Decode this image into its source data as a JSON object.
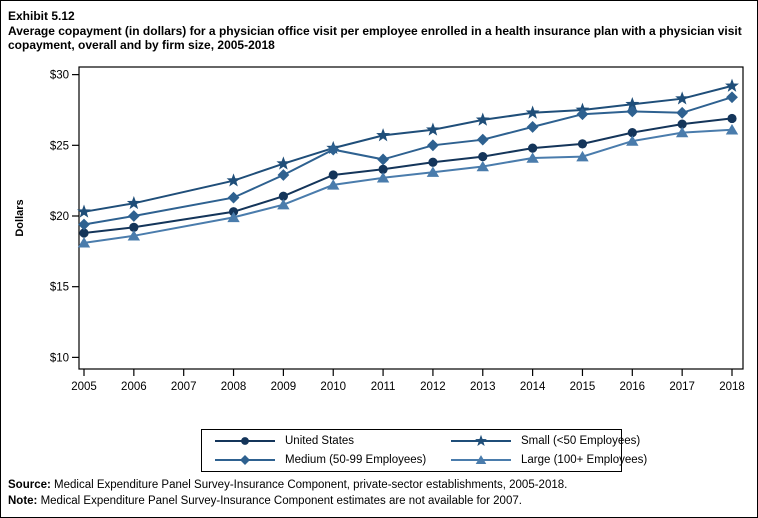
{
  "header": {
    "exhibit_label": "Exhibit 5.12",
    "title": "Average copayment (in dollars) for a physician office visit per employee enrolled in a health insurance plan with a physician visit copayment, overall and by firm size, 2005-2018"
  },
  "footer": {
    "source_label": "Source:",
    "source_text": " Medical Expenditure Panel Survey-Insurance Component, private-sector establishments, 2005-2018.",
    "note_label": "Note:",
    "note_text": " Medical Expenditure Panel Survey-Insurance Component estimates are not available for 2007."
  },
  "chart_data": {
    "type": "line",
    "title": "Average copayment (in dollars) for a physician office visit per employee enrolled in a health insurance plan with a physician visit copayment, overall and by firm size, 2005-2018",
    "xlabel": "",
    "ylabel": "Dollars",
    "ylim": [
      10,
      30
    ],
    "y_tick_values": [
      10,
      15,
      20,
      25,
      30
    ],
    "y_tick_labels": [
      "$10",
      "$15",
      "$20",
      "$25",
      "$30"
    ],
    "x": [
      2005,
      2006,
      2007,
      2008,
      2009,
      2010,
      2011,
      2012,
      2013,
      2014,
      2015,
      2016,
      2017,
      2018
    ],
    "x_tick_labels": [
      "2005",
      "2006",
      "2007",
      "2008",
      "2009",
      "2010",
      "2011",
      "2012",
      "2013",
      "2014",
      "2015",
      "2016",
      "2017",
      "2018"
    ],
    "grid": false,
    "legend_position": "bottom-box",
    "missing_data_note": "No estimates for 2007",
    "series": [
      {
        "name": "United States",
        "marker": "circle",
        "color": "#14355A",
        "values": [
          18.8,
          19.2,
          null,
          20.3,
          21.4,
          22.9,
          23.3,
          23.8,
          24.2,
          24.8,
          25.1,
          25.9,
          26.5,
          26.9
        ]
      },
      {
        "name": "Small (<50 Employees)",
        "marker": "star",
        "color": "#1F4E79",
        "values": [
          20.3,
          20.9,
          null,
          22.5,
          23.7,
          24.8,
          25.7,
          26.1,
          26.8,
          27.3,
          27.5,
          27.9,
          28.3,
          29.2
        ]
      },
      {
        "name": "Medium (50-99 Employees)",
        "marker": "diamond",
        "color": "#2E6190",
        "values": [
          19.4,
          20.0,
          null,
          21.3,
          22.9,
          24.7,
          24.0,
          25.0,
          25.4,
          26.3,
          27.2,
          27.4,
          27.3,
          28.4
        ]
      },
      {
        "name": "Large (100+ Employees)",
        "marker": "triangle",
        "color": "#4A7CAC",
        "values": [
          18.1,
          18.6,
          null,
          19.9,
          20.8,
          22.2,
          22.7,
          23.1,
          23.5,
          24.1,
          24.2,
          25.3,
          25.9,
          26.1
        ]
      }
    ]
  }
}
